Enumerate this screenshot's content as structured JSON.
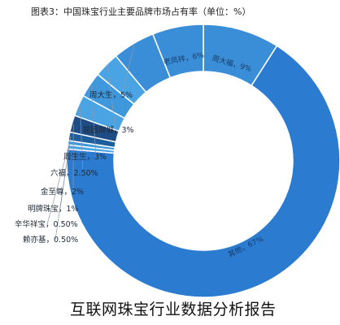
{
  "chart_title": "图表3：中国珠宝行业主要品牌市场占有率（单位：%）",
  "caption": "互联网珠宝行业数据分析报告",
  "colors": {
    "dark_blue": "#1d5f9e",
    "main_blue": "#2b7bd0",
    "mid_blue": "#3a8ed8",
    "light_blue": "#4aa4e4",
    "accent_navy": "#1e4d85"
  },
  "chart_data": {
    "type": "pie",
    "title": "图表3：中国珠宝行业主要品牌市场占有率（单位：%）",
    "unit": "%",
    "donut": true,
    "slices": [
      {
        "label": "周大福，9%",
        "name": "周大福",
        "value": 9,
        "color": "#3a8ed8"
      },
      {
        "label": "其他，67%",
        "name": "其他",
        "value": 67,
        "color": "#2b7bd0"
      },
      {
        "label": "赖亦基，0.50%",
        "name": "赖亦基",
        "value": 0.5,
        "color": "#4aa4e4"
      },
      {
        "label": "辛华祥宝，0.50%",
        "name": "辛华祥宝",
        "value": 0.5,
        "color": "#3f97dc"
      },
      {
        "label": "明牌珠宝，1%",
        "name": "明牌珠宝",
        "value": 1,
        "color": "#1d5f9e"
      },
      {
        "label": "金至尊，2%",
        "name": "金至尊",
        "value": 2,
        "color": "#1e4d85"
      },
      {
        "label": "六福，2.50%",
        "name": "六福",
        "value": 2.5,
        "color": "#4aa4e4"
      },
      {
        "label": "周生生，3%",
        "name": "周生生",
        "value": 3,
        "color": "#3f97dc"
      },
      {
        "label": "铭园商城，3%",
        "name": "铭园商城",
        "value": 3,
        "color": "#4aa4e4"
      },
      {
        "label": "周大生，5%",
        "name": "周大生",
        "value": 5,
        "color": "#3a8ed8"
      },
      {
        "label": "老凤祥，6%",
        "name": "老凤祥",
        "value": 6,
        "color": "#3a8ed8"
      }
    ]
  }
}
